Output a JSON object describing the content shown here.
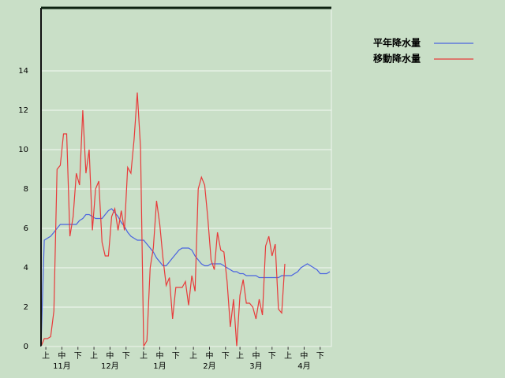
{
  "chart_data": {
    "type": "line",
    "x": [
      0,
      2,
      4,
      6,
      8,
      10,
      12,
      14,
      16,
      18,
      20,
      22,
      24,
      26,
      28,
      30,
      32,
      34,
      36,
      38,
      40,
      42,
      44,
      46,
      48,
      50,
      52,
      54,
      56,
      58,
      60,
      62,
      64,
      66,
      68,
      70,
      72,
      74,
      76,
      78,
      80,
      82,
      84,
      86,
      88,
      90,
      92,
      94,
      96,
      98,
      100,
      102,
      104,
      106,
      108,
      110,
      112,
      114,
      116,
      118,
      120,
      122,
      124,
      126,
      128,
      130,
      132,
      134,
      136,
      138,
      140,
      142,
      144,
      146,
      148,
      150,
      152,
      154,
      156,
      158,
      160,
      162,
      164,
      166,
      168,
      170,
      172,
      174,
      176,
      178,
      180
    ],
    "xlim": [
      0,
      181
    ],
    "xticks": [
      {
        "value": 3,
        "label": "上"
      },
      {
        "value": 13,
        "label": "中"
      },
      {
        "value": 23,
        "label": "下"
      },
      {
        "value": 33,
        "label": "上"
      },
      {
        "value": 43,
        "label": "中"
      },
      {
        "value": 53,
        "label": "下"
      },
      {
        "value": 64,
        "label": "上"
      },
      {
        "value": 74,
        "label": "中"
      },
      {
        "value": 84,
        "label": "下"
      },
      {
        "value": 95,
        "label": "上"
      },
      {
        "value": 105,
        "label": "中"
      },
      {
        "value": 115,
        "label": "下"
      },
      {
        "value": 124,
        "label": "上"
      },
      {
        "value": 134,
        "label": "中"
      },
      {
        "value": 144,
        "label": "下"
      },
      {
        "value": 154,
        "label": "上"
      },
      {
        "value": 164,
        "label": "中"
      },
      {
        "value": 174,
        "label": "下"
      }
    ],
    "month_ticks": [
      {
        "value": 13,
        "label": "11月"
      },
      {
        "value": 43,
        "label": "12月"
      },
      {
        "value": 74,
        "label": "1月"
      },
      {
        "value": 105,
        "label": "2月"
      },
      {
        "value": 134,
        "label": "3月"
      },
      {
        "value": 164,
        "label": "4月"
      }
    ],
    "ylim": [
      0,
      17.2
    ],
    "yticks": [
      0,
      2,
      4,
      6,
      8,
      10,
      12,
      14
    ],
    "grid": true,
    "legend": "top-right",
    "series": [
      {
        "name": "平年降水量",
        "color": "#4a63e0",
        "values": [
          0,
          5.4,
          5.5,
          5.6,
          5.8,
          6.0,
          6.2,
          6.2,
          6.2,
          6.2,
          6.2,
          6.2,
          6.4,
          6.5,
          6.7,
          6.7,
          6.6,
          6.5,
          6.5,
          6.5,
          6.7,
          6.9,
          7.0,
          6.8,
          6.6,
          6.3,
          6.1,
          5.8,
          5.6,
          5.5,
          5.4,
          5.4,
          5.4,
          5.2,
          5.0,
          4.8,
          4.5,
          4.3,
          4.1,
          4.1,
          4.3,
          4.5,
          4.7,
          4.9,
          5.0,
          5.0,
          5.0,
          4.9,
          4.6,
          4.4,
          4.2,
          4.1,
          4.1,
          4.2,
          4.2,
          4.2,
          4.2,
          4.1,
          4.0,
          3.9,
          3.8,
          3.8,
          3.7,
          3.7,
          3.6,
          3.6,
          3.6,
          3.6,
          3.5,
          3.5,
          3.5,
          3.5,
          3.5,
          3.5,
          3.5,
          3.6,
          3.6,
          3.6,
          3.6,
          3.7,
          3.8,
          4.0,
          4.1,
          4.2,
          4.1,
          4.0,
          3.9,
          3.7,
          3.7,
          3.7,
          3.8
        ]
      },
      {
        "name": "移動降水量",
        "color": "#e83a3a",
        "values": [
          0,
          0.4,
          0.4,
          0.5,
          1.8,
          9.0,
          9.2,
          10.8,
          10.8,
          5.6,
          6.6,
          8.8,
          8.2,
          12.0,
          8.8,
          10.0,
          5.9,
          8.0,
          8.4,
          5.3,
          4.6,
          4.6,
          6.6,
          7.0,
          5.9,
          6.9,
          5.9,
          9.1,
          8.8,
          10.5,
          12.9,
          10.1,
          0,
          0.3,
          4.0,
          5.0,
          7.4,
          6.2,
          4.5,
          3.1,
          3.5,
          1.4,
          3.0,
          3.0,
          3.0,
          3.3,
          2.1,
          3.6,
          2.8,
          8.0,
          8.6,
          8.2,
          6.5,
          4.4,
          3.9,
          5.8,
          4.9,
          4.8,
          3.3,
          1.0,
          2.4,
          0,
          2.6,
          3.4,
          2.2,
          2.2,
          2.0,
          1.4,
          2.4,
          1.6,
          5.1,
          5.6,
          4.6,
          5.2,
          1.9,
          1.7,
          4.2,
          null,
          null,
          null,
          null,
          null,
          null,
          null,
          null,
          null,
          null,
          null,
          null,
          null,
          null
        ]
      }
    ]
  }
}
